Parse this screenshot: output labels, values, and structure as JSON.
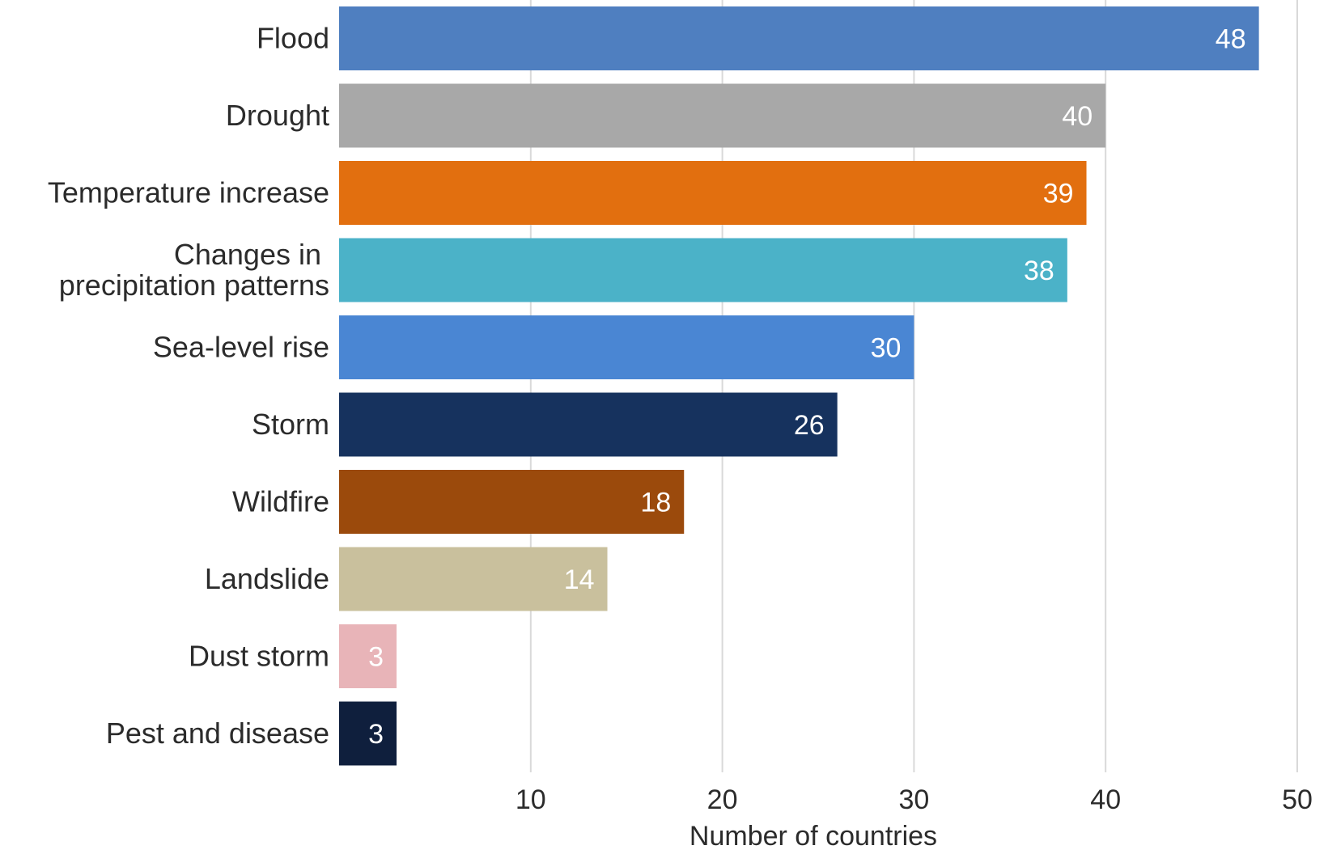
{
  "chart_data": {
    "type": "bar",
    "orientation": "horizontal",
    "title": "",
    "xlabel": "Number of countries",
    "ylabel": "",
    "xlim": [
      0,
      50
    ],
    "x_ticks": [
      10,
      20,
      30,
      40,
      50
    ],
    "grid": "vertical",
    "legend": "none",
    "categories": [
      [
        "Flood"
      ],
      [
        "Drought"
      ],
      [
        "Temperature increase"
      ],
      [
        "Changes in",
        "precipitation patterns"
      ],
      [
        "Sea-level rise"
      ],
      [
        "Storm"
      ],
      [
        "Wildfire"
      ],
      [
        "Landslide"
      ],
      [
        "Dust storm"
      ],
      [
        "Pest and disease"
      ]
    ],
    "values": [
      48,
      40,
      39,
      38,
      30,
      26,
      18,
      14,
      3,
      3
    ],
    "colors": [
      "#4f7fc0",
      "#a8a8a8",
      "#e26f0f",
      "#4bb2c8",
      "#4a86d3",
      "#16325e",
      "#9b4a0c",
      "#c9c09d",
      "#e8b4b8",
      "#0f1f3d"
    ]
  }
}
